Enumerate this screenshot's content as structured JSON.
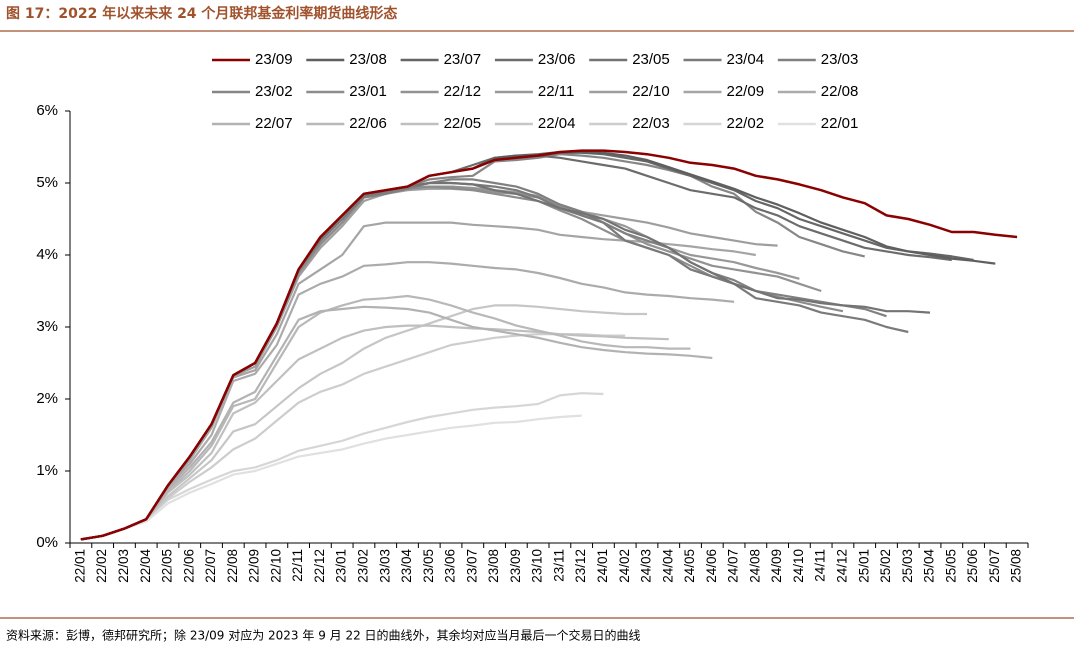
{
  "chart_data": {
    "type": "line",
    "title": "图 17：2022 年以来未来 24 个月联邦基金利率期货曲线形态",
    "source": "资料来源：彭博，德邦研究所；除 23/09 对应为 2023 年 9 月 22 日的曲线外，其余均对应当月最后一个交易日的曲线",
    "categories": [
      "22/01",
      "22/02",
      "22/03",
      "22/04",
      "22/05",
      "22/06",
      "22/07",
      "22/08",
      "22/09",
      "22/10",
      "22/11",
      "22/12",
      "23/01",
      "23/02",
      "23/03",
      "23/04",
      "23/05",
      "23/06",
      "23/07",
      "23/08",
      "23/09",
      "23/10",
      "23/11",
      "23/12",
      "24/01",
      "24/02",
      "24/03",
      "24/04",
      "24/05",
      "24/06",
      "24/07",
      "24/08",
      "24/09",
      "24/10",
      "24/11",
      "24/12",
      "25/01",
      "25/02",
      "25/03",
      "25/04",
      "25/05",
      "25/06",
      "25/07",
      "25/08"
    ],
    "ylim": [
      0,
      6
    ],
    "yticks": [
      {
        "value": 0,
        "label": "0%"
      },
      {
        "value": 1,
        "label": "1%"
      },
      {
        "value": 2,
        "label": "2%"
      },
      {
        "value": 3,
        "label": "3%"
      },
      {
        "value": 4,
        "label": "4%"
      },
      {
        "value": 5,
        "label": "5%"
      },
      {
        "value": 6,
        "label": "6%"
      }
    ],
    "grid": false,
    "series": [
      {
        "name": "23/09",
        "color": "#8b0000",
        "values": [
          0.05,
          0.1,
          0.2,
          0.33,
          0.8,
          1.2,
          1.65,
          2.33,
          2.5,
          3.05,
          3.8,
          4.25,
          4.55,
          4.85,
          4.9,
          4.95,
          5.1,
          5.15,
          5.2,
          5.32,
          5.35,
          5.38,
          5.43,
          5.45,
          5.45,
          5.43,
          5.4,
          5.35,
          5.28,
          5.25,
          5.2,
          5.1,
          5.05,
          4.98,
          4.9,
          4.8,
          4.72,
          4.55,
          4.5,
          4.42,
          4.32,
          4.32,
          4.28,
          4.25
        ]
      },
      {
        "name": "23/08",
        "color": "#5f5f5f",
        "values": [
          0.05,
          0.1,
          0.2,
          0.33,
          0.8,
          1.2,
          1.65,
          2.33,
          2.5,
          3.05,
          3.8,
          4.25,
          4.55,
          4.85,
          4.9,
          4.95,
          5.1,
          5.15,
          5.2,
          5.35,
          5.38,
          5.4,
          5.43,
          5.43,
          5.42,
          5.38,
          5.32,
          5.22,
          5.12,
          5.02,
          4.92,
          4.8,
          4.7,
          4.58,
          4.45,
          4.35,
          4.25,
          4.12,
          4.05,
          4.0,
          3.95,
          3.92,
          3.88,
          null
        ]
      },
      {
        "name": "23/07",
        "color": "#666666",
        "values": [
          0.05,
          0.1,
          0.2,
          0.33,
          0.8,
          1.2,
          1.65,
          2.33,
          2.5,
          3.05,
          3.8,
          4.25,
          4.55,
          4.85,
          4.9,
          4.95,
          5.1,
          5.15,
          5.2,
          5.32,
          5.35,
          5.38,
          5.42,
          5.42,
          5.4,
          5.35,
          5.3,
          5.2,
          5.1,
          5.0,
          4.9,
          4.75,
          4.65,
          4.5,
          4.4,
          4.3,
          4.2,
          4.1,
          4.05,
          4.02,
          3.98,
          3.93,
          null,
          null
        ]
      },
      {
        "name": "23/06",
        "color": "#6c6c6c",
        "values": [
          0.05,
          0.1,
          0.2,
          0.33,
          0.8,
          1.2,
          1.65,
          2.33,
          2.5,
          3.05,
          3.8,
          4.25,
          4.55,
          4.85,
          4.9,
          4.95,
          5.1,
          5.15,
          5.25,
          5.35,
          5.38,
          5.38,
          5.35,
          5.3,
          5.25,
          5.2,
          5.1,
          5.0,
          4.9,
          4.85,
          4.8,
          4.65,
          4.55,
          4.4,
          4.3,
          4.2,
          4.1,
          4.05,
          4.0,
          3.97,
          3.93,
          null,
          null,
          null
        ]
      },
      {
        "name": "23/05",
        "color": "#737373",
        "values": [
          0.05,
          0.1,
          0.2,
          0.33,
          0.8,
          1.2,
          1.65,
          2.33,
          2.5,
          3.05,
          3.8,
          4.22,
          4.55,
          4.85,
          4.9,
          4.95,
          5.0,
          5.0,
          4.98,
          4.9,
          4.85,
          4.75,
          4.65,
          4.58,
          4.5,
          4.35,
          4.25,
          4.1,
          3.9,
          3.75,
          3.6,
          3.5,
          3.4,
          3.38,
          3.33,
          3.3,
          3.28,
          3.22,
          3.22,
          3.2,
          null,
          null,
          null,
          null
        ]
      },
      {
        "name": "23/04",
        "color": "#7a7a7a",
        "values": [
          0.05,
          0.1,
          0.2,
          0.33,
          0.8,
          1.2,
          1.65,
          2.33,
          2.5,
          3.05,
          3.8,
          4.2,
          4.5,
          4.82,
          4.88,
          4.95,
          5.0,
          5.0,
          4.98,
          4.95,
          4.9,
          4.8,
          4.65,
          4.55,
          4.45,
          4.2,
          4.1,
          4.0,
          3.8,
          3.7,
          3.6,
          3.4,
          3.35,
          3.3,
          3.2,
          3.15,
          3.1,
          3.0,
          2.93,
          null,
          null,
          null,
          null,
          null
        ]
      },
      {
        "name": "23/03",
        "color": "#808080",
        "values": [
          0.05,
          0.1,
          0.2,
          0.33,
          0.8,
          1.2,
          1.65,
          2.33,
          2.5,
          3.05,
          3.8,
          4.2,
          4.5,
          4.8,
          4.85,
          4.92,
          5.0,
          5.05,
          5.05,
          5.0,
          4.95,
          4.85,
          4.7,
          4.6,
          4.45,
          4.3,
          4.2,
          4.1,
          3.9,
          3.75,
          3.65,
          3.5,
          3.45,
          3.4,
          3.35,
          3.3,
          3.25,
          3.15,
          null,
          null,
          null,
          null,
          null,
          null
        ]
      },
      {
        "name": "23/02",
        "color": "#868686",
        "values": [
          0.05,
          0.1,
          0.2,
          0.33,
          0.8,
          1.2,
          1.65,
          2.33,
          2.5,
          3.05,
          3.8,
          4.2,
          4.5,
          4.82,
          4.88,
          4.95,
          5.05,
          5.08,
          5.1,
          5.3,
          5.32,
          5.35,
          5.4,
          5.38,
          5.35,
          5.3,
          5.25,
          5.18,
          5.1,
          4.95,
          4.85,
          4.6,
          4.45,
          4.25,
          4.15,
          4.05,
          3.98,
          null,
          null,
          null,
          null,
          null,
          null,
          null
        ]
      },
      {
        "name": "23/01",
        "color": "#8c8c8c",
        "values": [
          0.05,
          0.1,
          0.2,
          0.33,
          0.8,
          1.2,
          1.65,
          2.33,
          2.5,
          3.05,
          3.75,
          4.15,
          4.45,
          4.8,
          4.85,
          4.92,
          4.95,
          4.93,
          4.9,
          4.85,
          4.8,
          4.75,
          4.62,
          4.5,
          4.35,
          4.2,
          4.1,
          4.0,
          3.85,
          3.7,
          3.6,
          3.5,
          3.42,
          3.35,
          3.28,
          3.22,
          null,
          null,
          null,
          null,
          null,
          null,
          null,
          null
        ]
      },
      {
        "name": "22/12",
        "color": "#929292",
        "values": [
          0.05,
          0.1,
          0.2,
          0.33,
          0.8,
          1.2,
          1.65,
          2.33,
          2.5,
          3.05,
          3.75,
          4.15,
          4.45,
          4.8,
          4.85,
          4.92,
          4.95,
          4.95,
          4.92,
          4.88,
          4.85,
          4.8,
          4.68,
          4.55,
          4.45,
          4.3,
          4.15,
          4.05,
          3.95,
          3.85,
          3.8,
          3.75,
          3.7,
          3.6,
          3.5,
          null,
          null,
          null,
          null,
          null,
          null,
          null,
          null,
          null
        ]
      },
      {
        "name": "22/11",
        "color": "#989898",
        "values": [
          0.05,
          0.1,
          0.2,
          0.33,
          0.8,
          1.2,
          1.65,
          2.33,
          2.5,
          3.05,
          3.75,
          4.15,
          4.45,
          4.8,
          4.88,
          4.92,
          4.95,
          4.95,
          4.93,
          4.9,
          4.87,
          4.82,
          4.7,
          4.6,
          4.5,
          4.4,
          4.25,
          4.1,
          4.0,
          3.95,
          3.9,
          3.82,
          3.75,
          3.67,
          null,
          null,
          null,
          null,
          null,
          null,
          null,
          null,
          null,
          null
        ]
      },
      {
        "name": "22/10",
        "color": "#9e9e9e",
        "values": [
          0.05,
          0.1,
          0.2,
          0.33,
          0.8,
          1.2,
          1.65,
          2.32,
          2.45,
          3.0,
          3.7,
          4.1,
          4.4,
          4.75,
          4.85,
          4.9,
          4.92,
          4.92,
          4.9,
          4.87,
          4.85,
          4.8,
          4.7,
          4.6,
          4.55,
          4.5,
          4.45,
          4.38,
          4.3,
          4.25,
          4.2,
          4.15,
          4.13,
          null,
          null,
          null,
          null,
          null,
          null,
          null,
          null,
          null,
          null,
          null
        ]
      },
      {
        "name": "22/09",
        "color": "#a5a5a5",
        "values": [
          0.05,
          0.1,
          0.2,
          0.33,
          0.8,
          1.15,
          1.6,
          2.3,
          2.4,
          2.9,
          3.6,
          3.8,
          4.0,
          4.4,
          4.45,
          4.45,
          4.45,
          4.45,
          4.42,
          4.4,
          4.38,
          4.35,
          4.28,
          4.25,
          4.22,
          4.2,
          4.18,
          4.15,
          4.12,
          4.08,
          4.05,
          4.0,
          null,
          null,
          null,
          null,
          null,
          null,
          null,
          null,
          null,
          null,
          null,
          null
        ]
      },
      {
        "name": "22/08",
        "color": "#ababab",
        "values": [
          0.05,
          0.1,
          0.2,
          0.33,
          0.78,
          1.1,
          1.5,
          2.25,
          2.35,
          2.75,
          3.45,
          3.6,
          3.7,
          3.85,
          3.87,
          3.9,
          3.9,
          3.88,
          3.85,
          3.82,
          3.8,
          3.75,
          3.68,
          3.6,
          3.55,
          3.48,
          3.45,
          3.43,
          3.4,
          3.38,
          3.35,
          null,
          null,
          null,
          null,
          null,
          null,
          null,
          null,
          null,
          null,
          null,
          null,
          null
        ]
      },
      {
        "name": "22/07",
        "color": "#b2b2b2",
        "values": [
          0.05,
          0.1,
          0.2,
          0.33,
          0.75,
          1.05,
          1.4,
          1.95,
          2.1,
          2.6,
          3.1,
          3.22,
          3.25,
          3.28,
          3.27,
          3.25,
          3.2,
          3.1,
          3.0,
          2.95,
          2.9,
          2.85,
          2.78,
          2.72,
          2.68,
          2.65,
          2.63,
          2.62,
          2.6,
          2.57,
          null,
          null,
          null,
          null,
          null,
          null,
          null,
          null,
          null,
          null,
          null,
          null,
          null,
          null
        ]
      },
      {
        "name": "22/06",
        "color": "#b8b8b8",
        "values": [
          0.05,
          0.1,
          0.2,
          0.33,
          0.72,
          1.0,
          1.35,
          1.9,
          2.0,
          2.5,
          3.0,
          3.2,
          3.3,
          3.38,
          3.4,
          3.43,
          3.38,
          3.3,
          3.2,
          3.12,
          3.02,
          2.95,
          2.88,
          2.8,
          2.75,
          2.72,
          2.72,
          2.7,
          2.7,
          null,
          null,
          null,
          null,
          null,
          null,
          null,
          null,
          null,
          null,
          null,
          null,
          null,
          null,
          null
        ]
      },
      {
        "name": "22/05",
        "color": "#bfbfbf",
        "values": [
          0.05,
          0.1,
          0.2,
          0.33,
          0.7,
          0.95,
          1.25,
          1.8,
          1.95,
          2.25,
          2.55,
          2.7,
          2.85,
          2.95,
          3.0,
          3.02,
          3.02,
          3.0,
          2.98,
          2.97,
          2.95,
          2.93,
          2.9,
          2.88,
          2.87,
          2.85,
          2.84,
          2.83,
          null,
          null,
          null,
          null,
          null,
          null,
          null,
          null,
          null,
          null,
          null,
          null,
          null,
          null,
          null,
          null
        ]
      },
      {
        "name": "22/04",
        "color": "#c6c6c6",
        "values": [
          0.05,
          0.1,
          0.2,
          0.33,
          0.65,
          0.9,
          1.15,
          1.55,
          1.65,
          1.9,
          2.15,
          2.35,
          2.5,
          2.7,
          2.85,
          2.95,
          3.05,
          3.15,
          3.25,
          3.3,
          3.3,
          3.28,
          3.25,
          3.22,
          3.2,
          3.18,
          3.18,
          null,
          null,
          null,
          null,
          null,
          null,
          null,
          null,
          null,
          null,
          null,
          null,
          null,
          null,
          null,
          null,
          null
        ]
      },
      {
        "name": "22/03",
        "color": "#cdcdcd",
        "values": [
          0.05,
          0.1,
          0.2,
          0.33,
          0.62,
          0.85,
          1.05,
          1.3,
          1.45,
          1.7,
          1.95,
          2.1,
          2.2,
          2.35,
          2.45,
          2.55,
          2.65,
          2.75,
          2.8,
          2.85,
          2.88,
          2.9,
          2.9,
          2.9,
          2.88,
          2.88,
          null,
          null,
          null,
          null,
          null,
          null,
          null,
          null,
          null,
          null,
          null,
          null,
          null,
          null,
          null,
          null,
          null,
          null
        ]
      },
      {
        "name": "22/02",
        "color": "#d6d6d6",
        "values": [
          0.05,
          0.1,
          0.2,
          0.33,
          0.6,
          0.75,
          0.88,
          1.0,
          1.05,
          1.15,
          1.28,
          1.35,
          1.42,
          1.52,
          1.6,
          1.68,
          1.75,
          1.8,
          1.85,
          1.88,
          1.9,
          1.93,
          2.05,
          2.08,
          2.07,
          null,
          null,
          null,
          null,
          null,
          null,
          null,
          null,
          null,
          null,
          null,
          null,
          null,
          null,
          null,
          null,
          null,
          null,
          null
        ]
      },
      {
        "name": "22/01",
        "color": "#e0e0e0",
        "values": [
          0.05,
          0.1,
          0.2,
          0.3,
          0.55,
          0.7,
          0.82,
          0.95,
          1.0,
          1.1,
          1.2,
          1.25,
          1.3,
          1.38,
          1.45,
          1.5,
          1.55,
          1.6,
          1.63,
          1.67,
          1.68,
          1.72,
          1.75,
          1.77,
          null,
          null,
          null,
          null,
          null,
          null,
          null,
          null,
          null,
          null,
          null,
          null,
          null,
          null,
          null,
          null,
          null,
          null,
          null,
          null
        ]
      }
    ]
  }
}
